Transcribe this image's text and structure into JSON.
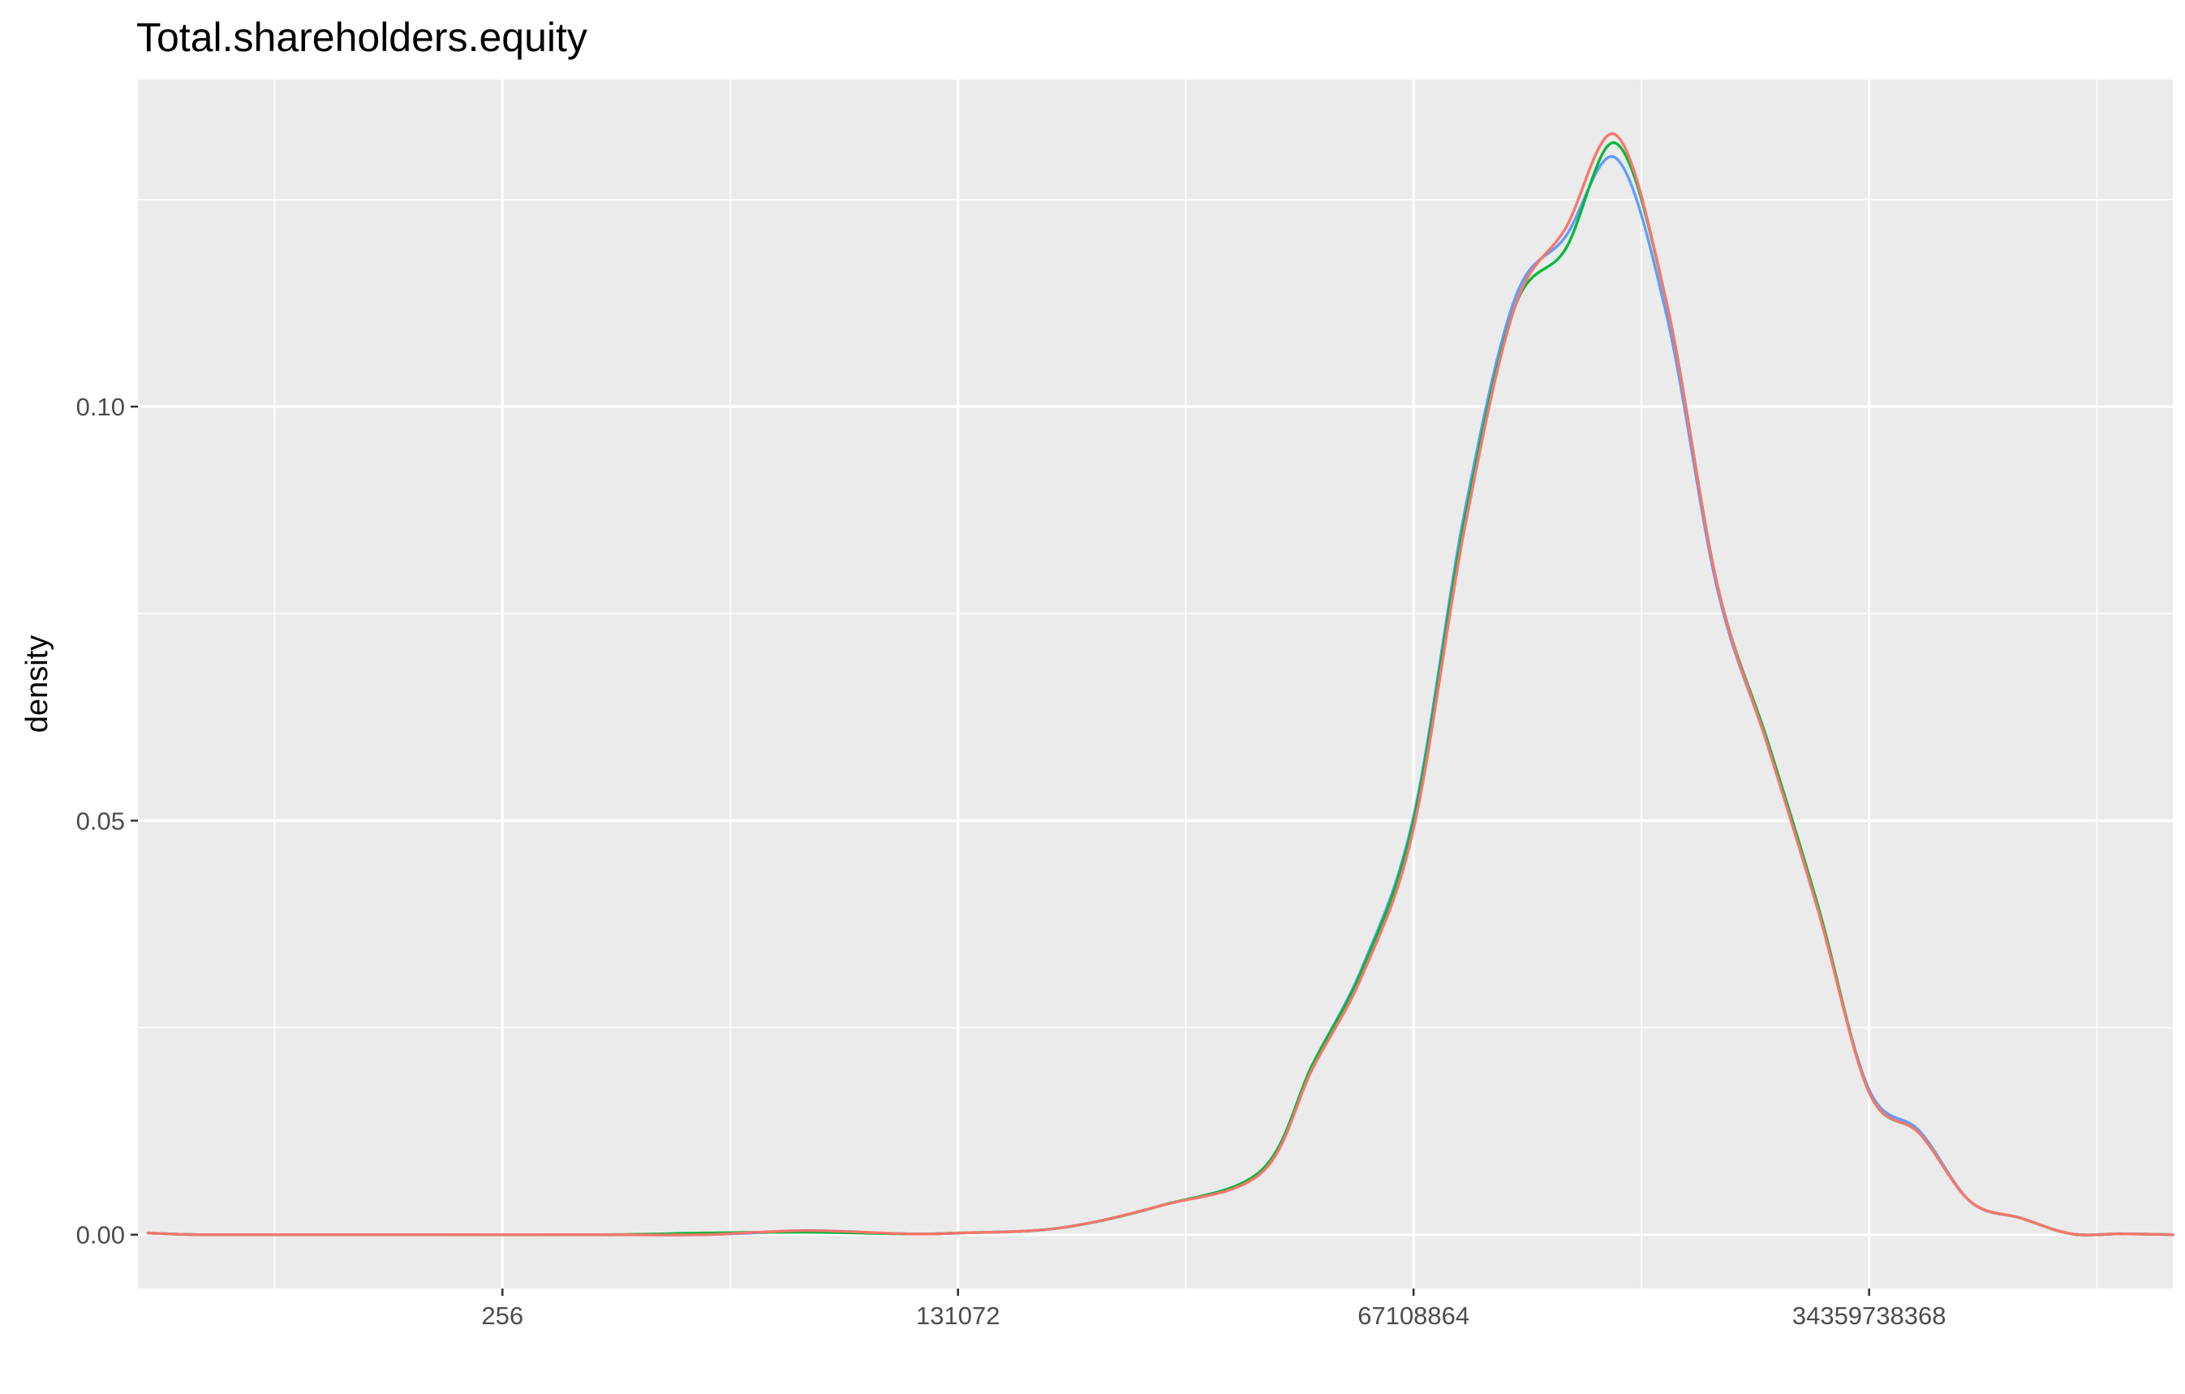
{
  "chart_data": {
    "type": "line",
    "title": "Total.shareholders.equity",
    "xlabel": "",
    "ylabel": "density",
    "x_scale": "log2",
    "x_tick_values": [
      256,
      131072,
      67108864,
      34359738368
    ],
    "x_tick_labels": [
      "256",
      "131072",
      "67108864",
      "34359738368"
    ],
    "xlim": [
      1.74,
      2199023255552
    ],
    "y_ticks": [
      0.0,
      0.05,
      0.1
    ],
    "y_tick_labels": [
      "0.00",
      "0.05",
      "0.10"
    ],
    "ylim": [
      -0.0065,
      0.1395
    ],
    "grid": true,
    "legend": "none",
    "background": "#EBEBEB",
    "series": [
      {
        "color": "#619CFF",
        "x": [
          2,
          4,
          16,
          64,
          1024,
          4096,
          16384,
          65536,
          131072,
          524288,
          2097152,
          8388608,
          16777216,
          33554432,
          67108864,
          134217728,
          268435456,
          536870912,
          1073741824,
          2147483648,
          4294967296,
          8589934592,
          17179869184,
          34359738368,
          68719476736,
          137438953472,
          274877906944,
          549755813888,
          1099511627776,
          2199023255552
        ],
        "y": [
          0.0002,
          0.0,
          0.0,
          0.0,
          0.0,
          0.0,
          0.0004,
          0.0001,
          0.0002,
          0.0008,
          0.0035,
          0.0078,
          0.0205,
          0.0325,
          0.0505,
          0.087,
          0.113,
          0.1205,
          0.13,
          0.111,
          0.078,
          0.059,
          0.039,
          0.0175,
          0.0125,
          0.004,
          0.002,
          0.0001,
          0.0001,
          0.0
        ]
      },
      {
        "color": "#00BA38",
        "x": [
          2,
          4,
          16,
          64,
          1024,
          4096,
          16384,
          65536,
          131072,
          524288,
          2097152,
          8388608,
          16777216,
          33554432,
          67108864,
          134217728,
          268435456,
          536870912,
          1073741824,
          2147483648,
          4294967296,
          8589934592,
          17179869184,
          34359738368,
          68719476736,
          137438953472,
          274877906944,
          549755813888,
          1099511627776,
          2199023255552
        ],
        "y": [
          0.0002,
          0.0,
          0.0,
          0.0,
          0.0,
          0.0002,
          0.0003,
          0.0001,
          0.0002,
          0.0008,
          0.0035,
          0.0078,
          0.0205,
          0.0322,
          0.05,
          0.086,
          0.112,
          0.119,
          0.1318,
          0.1125,
          0.0785,
          0.0595,
          0.0395,
          0.0172,
          0.0122,
          0.004,
          0.002,
          0.0001,
          0.0001,
          0.0
        ]
      },
      {
        "color": "#F8766D",
        "x": [
          2,
          4,
          16,
          64,
          1024,
          4096,
          16384,
          65536,
          131072,
          524288,
          2097152,
          8388608,
          16777216,
          33554432,
          67108864,
          134217728,
          268435456,
          536870912,
          1073741824,
          2147483648,
          4294967296,
          8589934592,
          17179869184,
          34359738368,
          68719476736,
          137438953472,
          274877906944,
          549755813888,
          1099511627776,
          2199023255552
        ],
        "y": [
          0.0002,
          0.0,
          0.0,
          0.0,
          0.0,
          0.0,
          0.0005,
          0.0001,
          0.0002,
          0.0008,
          0.0035,
          0.0075,
          0.02,
          0.0315,
          0.049,
          0.085,
          0.112,
          0.1215,
          0.1328,
          0.1125,
          0.0785,
          0.059,
          0.039,
          0.0172,
          0.0122,
          0.004,
          0.002,
          0.0001,
          0.0001,
          0.0
        ]
      }
    ]
  }
}
